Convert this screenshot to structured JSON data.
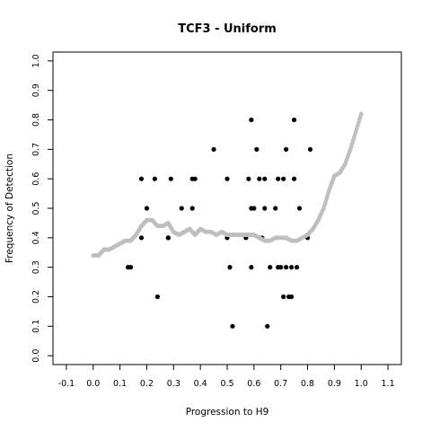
{
  "chart_data": {
    "type": "scatter",
    "title": "TCF3 - Uniform",
    "xlabel": "Progression to H9",
    "ylabel": "Frequency of Detection",
    "xlim": [
      -0.15,
      1.15
    ],
    "ylim": [
      -0.03,
      1.03
    ],
    "x_ticks": [
      "-0.1",
      "0.0",
      "0.1",
      "0.2",
      "0.3",
      "0.4",
      "0.5",
      "0.6",
      "0.7",
      "0.8",
      "0.9",
      "1.0",
      "1.1"
    ],
    "y_ticks": [
      "0.0",
      "0.1",
      "0.2",
      "0.3",
      "0.4",
      "0.5",
      "0.6",
      "0.7",
      "0.8",
      "0.9",
      "1.0"
    ],
    "grid": false,
    "series": [
      {
        "style": "points",
        "color": "#000000",
        "points": [
          [
            0.13,
            0.3
          ],
          [
            0.14,
            0.3
          ],
          [
            0.18,
            0.6
          ],
          [
            0.18,
            0.4
          ],
          [
            0.2,
            0.5
          ],
          [
            0.23,
            0.6
          ],
          [
            0.24,
            0.2
          ],
          [
            0.28,
            0.4
          ],
          [
            0.28,
            0.4
          ],
          [
            0.29,
            0.6
          ],
          [
            0.33,
            0.5
          ],
          [
            0.37,
            0.6
          ],
          [
            0.37,
            0.5
          ],
          [
            0.38,
            0.6
          ],
          [
            0.45,
            0.7
          ],
          [
            0.5,
            0.6
          ],
          [
            0.5,
            0.4
          ],
          [
            0.51,
            0.3
          ],
          [
            0.52,
            0.1
          ],
          [
            0.57,
            0.4
          ],
          [
            0.58,
            0.6
          ],
          [
            0.59,
            0.8
          ],
          [
            0.59,
            0.5
          ],
          [
            0.59,
            0.3
          ],
          [
            0.6,
            0.5
          ],
          [
            0.61,
            0.7
          ],
          [
            0.62,
            0.6
          ],
          [
            0.63,
            0.4
          ],
          [
            0.64,
            0.6
          ],
          [
            0.64,
            0.5
          ],
          [
            0.65,
            0.1
          ],
          [
            0.66,
            0.3
          ],
          [
            0.68,
            0.5
          ],
          [
            0.69,
            0.6
          ],
          [
            0.69,
            0.3
          ],
          [
            0.7,
            0.3
          ],
          [
            0.71,
            0.6
          ],
          [
            0.71,
            0.2
          ],
          [
            0.72,
            0.7
          ],
          [
            0.72,
            0.3
          ],
          [
            0.73,
            0.2
          ],
          [
            0.74,
            0.3
          ],
          [
            0.74,
            0.2
          ],
          [
            0.75,
            0.8
          ],
          [
            0.75,
            0.6
          ],
          [
            0.76,
            0.3
          ],
          [
            0.77,
            0.5
          ],
          [
            0.8,
            0.4
          ],
          [
            0.81,
            0.7
          ]
        ]
      },
      {
        "style": "smooth",
        "color": "#bfbfbf",
        "points": [
          [
            0.0,
            0.34
          ],
          [
            0.02,
            0.34
          ],
          [
            0.04,
            0.36
          ],
          [
            0.06,
            0.36
          ],
          [
            0.08,
            0.37
          ],
          [
            0.1,
            0.38
          ],
          [
            0.12,
            0.39
          ],
          [
            0.14,
            0.39
          ],
          [
            0.16,
            0.41
          ],
          [
            0.18,
            0.44
          ],
          [
            0.2,
            0.46
          ],
          [
            0.22,
            0.46
          ],
          [
            0.24,
            0.44
          ],
          [
            0.26,
            0.44
          ],
          [
            0.28,
            0.45
          ],
          [
            0.3,
            0.42
          ],
          [
            0.32,
            0.41
          ],
          [
            0.34,
            0.42
          ],
          [
            0.36,
            0.43
          ],
          [
            0.38,
            0.41
          ],
          [
            0.4,
            0.43
          ],
          [
            0.42,
            0.42
          ],
          [
            0.44,
            0.42
          ],
          [
            0.46,
            0.41
          ],
          [
            0.48,
            0.42
          ],
          [
            0.5,
            0.41
          ],
          [
            0.52,
            0.41
          ],
          [
            0.54,
            0.41
          ],
          [
            0.56,
            0.41
          ],
          [
            0.58,
            0.41
          ],
          [
            0.6,
            0.41
          ],
          [
            0.62,
            0.4
          ],
          [
            0.64,
            0.39
          ],
          [
            0.66,
            0.39
          ],
          [
            0.68,
            0.4
          ],
          [
            0.7,
            0.4
          ],
          [
            0.72,
            0.4
          ],
          [
            0.74,
            0.39
          ],
          [
            0.76,
            0.39
          ],
          [
            0.78,
            0.4
          ],
          [
            0.8,
            0.41
          ],
          [
            0.82,
            0.43
          ],
          [
            0.84,
            0.46
          ],
          [
            0.86,
            0.5
          ],
          [
            0.88,
            0.56
          ],
          [
            0.9,
            0.61
          ],
          [
            0.92,
            0.62
          ],
          [
            0.94,
            0.65
          ],
          [
            0.96,
            0.7
          ],
          [
            0.98,
            0.76
          ],
          [
            1.0,
            0.82
          ]
        ]
      }
    ]
  }
}
